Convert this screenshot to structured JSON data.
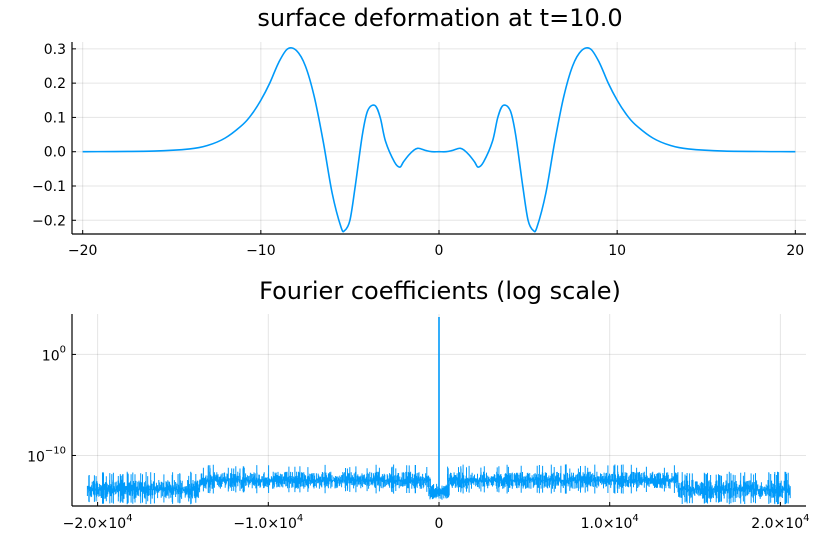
{
  "chart_data": [
    {
      "type": "line",
      "title": "surface deformation at t=10.0",
      "xlabel": "",
      "ylabel": "",
      "xlim": [
        -20.6,
        20.6
      ],
      "ylim": [
        -0.24,
        0.32
      ],
      "x_ticks": [
        -20,
        -10,
        0,
        10,
        20
      ],
      "x_tick_labels": [
        "−20",
        "−10",
        "0",
        "10",
        "20"
      ],
      "y_ticks": [
        -0.2,
        -0.1,
        0.0,
        0.1,
        0.2,
        0.3
      ],
      "y_tick_labels": [
        "−0.2",
        "−0.1",
        "0.0",
        "0.1",
        "0.2",
        "0.3"
      ],
      "grid": true,
      "legend": "none",
      "color": "#009AFA",
      "series": [
        {
          "x": [
            -20,
            -16,
            -14,
            -13,
            -12,
            -11,
            -10.5,
            -10,
            -9.5,
            -9,
            -8.5,
            -8,
            -7.5,
            -7,
            -6.5,
            -6,
            -5.5,
            -5.3,
            -5,
            -4.7,
            -4.3,
            -4,
            -3.6,
            -3.3,
            -3,
            -2.5,
            -2.2,
            -2,
            -1.7,
            -1.4,
            -1.2,
            -1,
            -0.7,
            -0.4,
            0,
            0.4,
            0.7,
            1,
            1.2,
            1.4,
            1.7,
            2,
            2.2,
            2.5,
            3,
            3.3,
            3.6,
            4,
            4.3,
            4.7,
            5,
            5.3,
            5.5,
            6,
            6.5,
            7,
            7.5,
            8,
            8.5,
            9,
            9.5,
            10,
            10.5,
            11,
            12,
            13,
            14,
            16,
            20
          ],
          "y": [
            0.0,
            0.002,
            0.008,
            0.018,
            0.04,
            0.08,
            0.11,
            0.15,
            0.2,
            0.26,
            0.3,
            0.295,
            0.25,
            0.16,
            0.03,
            -0.12,
            -0.22,
            -0.23,
            -0.2,
            -0.1,
            0.05,
            0.12,
            0.135,
            0.1,
            0.03,
            -0.03,
            -0.045,
            -0.03,
            -0.01,
            0.005,
            0.01,
            0.008,
            0.003,
            0.0,
            0.0,
            0.0,
            0.003,
            0.008,
            0.01,
            0.005,
            -0.01,
            -0.03,
            -0.045,
            -0.03,
            0.03,
            0.1,
            0.135,
            0.12,
            0.05,
            -0.1,
            -0.2,
            -0.23,
            -0.22,
            -0.12,
            0.03,
            0.16,
            0.25,
            0.295,
            0.3,
            0.26,
            0.2,
            0.15,
            0.11,
            0.08,
            0.04,
            0.018,
            0.008,
            0.002,
            0.0
          ]
        }
      ]
    },
    {
      "type": "line",
      "title": "Fourier coefficients (log scale)",
      "xlabel": "",
      "ylabel": "",
      "xlim": [
        -21500,
        21500
      ],
      "ylim_log10": [
        -15,
        4
      ],
      "y_scale": "log",
      "x_ticks": [
        -20000,
        -10000,
        0,
        10000,
        20000
      ],
      "x_tick_labels": [
        {
          "mantissa": "−2.0×10",
          "exp": "4"
        },
        {
          "mantissa": "−1.0×10",
          "exp": "4"
        },
        {
          "mantissa": "0",
          "exp": ""
        },
        {
          "mantissa": "1.0×10",
          "exp": "4"
        },
        {
          "mantissa": "2.0×10",
          "exp": "4"
        }
      ],
      "y_ticks_log10": [
        0,
        -10
      ],
      "y_tick_labels": [
        {
          "mantissa": "10",
          "exp": "0"
        },
        {
          "mantissa": "10",
          "exp": "−10"
        }
      ],
      "grid": true,
      "legend": "none",
      "color": "#009AFA",
      "noise_floor_log10": [
        {
          "from": -20600,
          "to": -14000,
          "low": -14.3,
          "high": -12.4
        },
        {
          "from": -14000,
          "to": -500,
          "low": -13.3,
          "high": -11.6
        },
        {
          "from": 500,
          "to": 14000,
          "low": -13.3,
          "high": -11.6
        },
        {
          "from": 14000,
          "to": 20600,
          "low": -14.3,
          "high": -12.4
        }
      ],
      "peak": {
        "x": 0,
        "log10_value": 3.7
      }
    }
  ]
}
